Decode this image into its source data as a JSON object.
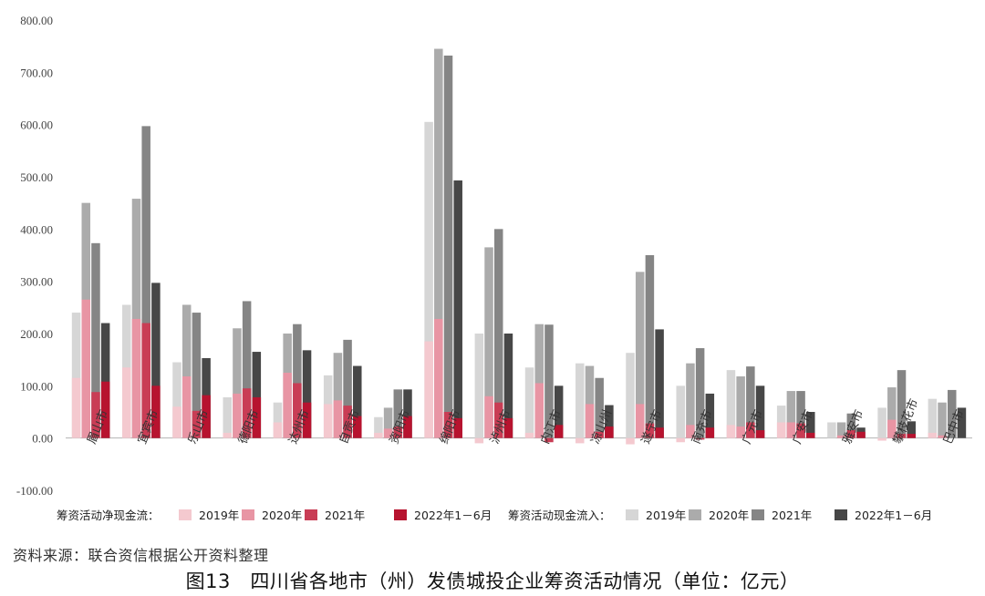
{
  "chart_data": {
    "type": "bar",
    "title": "",
    "ylim": [
      -100,
      800
    ],
    "yticks": [
      "800.00",
      "700.00",
      "600.00",
      "500.00",
      "400.00",
      "300.00",
      "200.00",
      "100.00",
      "0.00",
      "-100.00"
    ],
    "categories": [
      "眉山市",
      "宜宾市",
      "乐山市",
      "德阳市",
      "达州市",
      "自贡市",
      "资阳市",
      "绵阳市",
      "泸州市",
      "内江市",
      "凉山州",
      "遂宁市",
      "南充市",
      "广元市",
      "广安市",
      "雅安市",
      "攀枝花市",
      "巴中市"
    ],
    "periods": [
      "2019年",
      "2020年",
      "2021年",
      "2022年1－6月"
    ],
    "groups": [
      {
        "name": "筹资活动净现金流：",
        "colors": [
          "#f4c9cf",
          "#e895a4",
          "#c93d55",
          "#b7132f"
        ],
        "series": [
          {
            "name": "2019年",
            "values": [
              115,
              135,
              60,
              10,
              30,
              65,
              10,
              185,
              -10,
              10,
              -10,
              -12,
              -8,
              25,
              30,
              0,
              -5,
              10
            ]
          },
          {
            "name": "2020年",
            "values": [
              265,
              228,
              118,
              85,
              125,
              72,
              18,
              228,
              80,
              105,
              65,
              65,
              25,
              22,
              30,
              5,
              35,
              5
            ]
          },
          {
            "name": "2021年",
            "values": [
              88,
              220,
              52,
              95,
              105,
              62,
              22,
              50,
              68,
              -8,
              12,
              28,
              -3,
              30,
              28,
              15,
              8,
              0
            ]
          },
          {
            "name": "2022年1－6月",
            "values": [
              108,
              100,
              82,
              78,
              68,
              42,
              42,
              38,
              38,
              25,
              22,
              20,
              20,
              15,
              10,
              12,
              8,
              0
            ]
          }
        ]
      },
      {
        "name": "筹资活动现金流入：",
        "colors": [
          "#d6d6d6",
          "#ababab",
          "#858585",
          "#474747"
        ],
        "series": [
          {
            "name": "2019年",
            "values": [
              240,
              255,
              145,
              78,
              68,
              120,
              40,
              605,
              200,
              135,
              143,
              163,
              100,
              130,
              62,
              30,
              58,
              75
            ]
          },
          {
            "name": "2020年",
            "values": [
              450,
              458,
              255,
              210,
              200,
              163,
              58,
              745,
              365,
              218,
              138,
              318,
              143,
              118,
              90,
              30,
              97,
              68
            ]
          },
          {
            "name": "2021年",
            "values": [
              373,
              597,
              240,
              262,
              218,
              188,
              93,
              732,
              400,
              217,
              115,
              350,
              172,
              137,
              90,
              47,
              130,
              92
            ]
          },
          {
            "name": "2022年1－6月",
            "values": [
              220,
              297,
              153,
              165,
              168,
              138,
              93,
              493,
              200,
              100,
              63,
              208,
              85,
              100,
              50,
              20,
              32,
              58
            ]
          }
        ]
      }
    ],
    "grid": false,
    "legend": "bottom"
  },
  "footer": {
    "source": "资料来源：联合资信根据公开资料整理",
    "caption": "图13　四川省各地市（州）发债城投企业筹资活动情况（单位：亿元）"
  }
}
